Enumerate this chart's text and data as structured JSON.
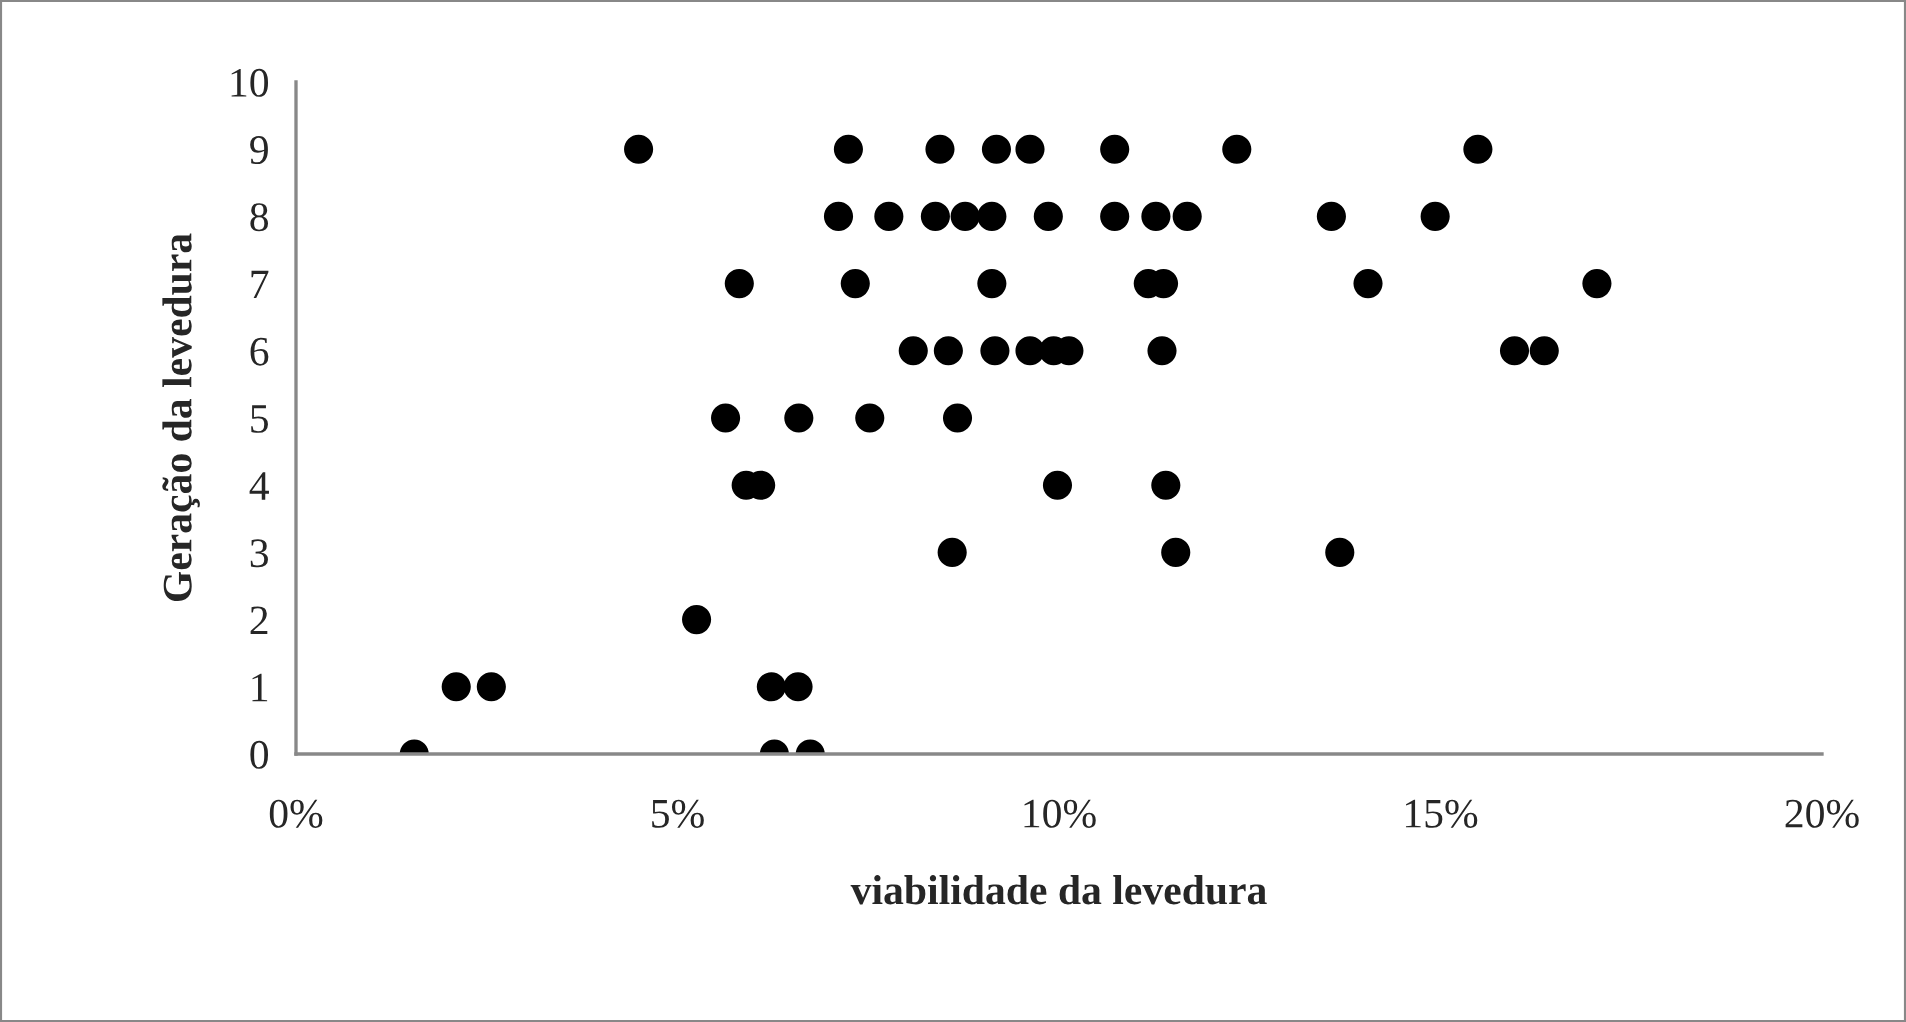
{
  "chart_data": {
    "type": "scatter",
    "xlabel": "viabilidade da levedura",
    "ylabel": "Geração da levedura",
    "x": [
      4.49,
      7.24,
      8.44,
      9.18,
      9.62,
      10.73,
      12.33,
      15.49,
      7.11,
      7.77,
      8.38,
      8.77,
      9.12,
      9.86,
      10.73,
      11.27,
      11.68,
      13.57,
      14.93,
      5.81,
      7.33,
      9.12,
      11.17,
      11.37,
      14.05,
      17.05,
      8.09,
      8.55,
      9.16,
      9.62,
      9.93,
      10.13,
      11.35,
      15.97,
      16.36,
      5.63,
      6.59,
      7.52,
      8.67,
      5.9,
      6.09,
      9.98,
      11.4,
      8.6,
      11.53,
      13.68,
      5.25,
      2.1,
      2.56,
      6.23,
      6.58,
      1.55,
      6.27,
      6.74
    ],
    "values": [
      9,
      9,
      9,
      9,
      9,
      9,
      9,
      9,
      8,
      8,
      8,
      8,
      8,
      8,
      8,
      8,
      8,
      8,
      8,
      7,
      7,
      7,
      7,
      7,
      7,
      7,
      6,
      6,
      6,
      6,
      6,
      6,
      6,
      6,
      6,
      5,
      5,
      5,
      5,
      4,
      4,
      4,
      4,
      3,
      3,
      3,
      2,
      1,
      1,
      1,
      1,
      0,
      0,
      0
    ],
    "color": "#000000",
    "marker": "circle",
    "xlim": [
      0,
      20
    ],
    "xticks": [
      {
        "value": 0,
        "label": "0%"
      },
      {
        "value": 5,
        "label": "5%"
      },
      {
        "value": 10,
        "label": "10%"
      },
      {
        "value": 15,
        "label": "15%"
      },
      {
        "value": 20,
        "label": "20%"
      }
    ],
    "ylim": [
      0,
      10
    ],
    "yticks": [
      0,
      1,
      2,
      3,
      4,
      5,
      6,
      7,
      8,
      9,
      10
    ],
    "grid": false,
    "legend": false
  }
}
